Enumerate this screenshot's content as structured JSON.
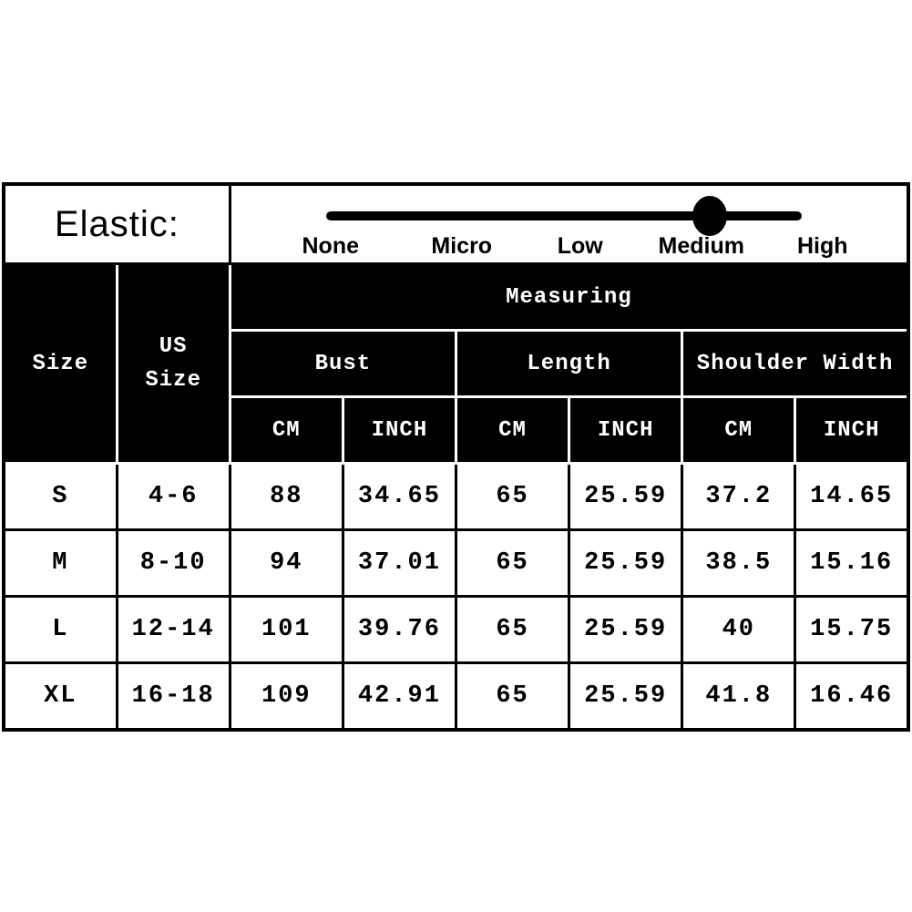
{
  "elastic": {
    "label": "Elastic:",
    "levels": [
      "None",
      "Micro",
      "Low",
      "Medium",
      "High"
    ],
    "selected": "Medium"
  },
  "header": {
    "size": "Size",
    "us_size": "US\nSize",
    "measuring": "Measuring",
    "groups": [
      "Bust",
      "Length",
      "Shoulder Width"
    ],
    "units": [
      "CM",
      "INCH",
      "CM",
      "INCH",
      "CM",
      "INCH"
    ]
  },
  "chart_data": {
    "type": "table",
    "title": "Garment size chart with elastic level indicator",
    "elastic_scale": {
      "options": [
        "None",
        "Micro",
        "Low",
        "Medium",
        "High"
      ],
      "selected": "Medium"
    },
    "columns": [
      "Size",
      "US Size",
      "Bust CM",
      "Bust INCH",
      "Length CM",
      "Length INCH",
      "Shoulder Width CM",
      "Shoulder Width INCH"
    ],
    "rows": [
      [
        "S",
        "4-6",
        "88",
        "34.65",
        "65",
        "25.59",
        "37.2",
        "14.65"
      ],
      [
        "M",
        "8-10",
        "94",
        "37.01",
        "65",
        "25.59",
        "38.5",
        "15.16"
      ],
      [
        "L",
        "12-14",
        "101",
        "39.76",
        "65",
        "25.59",
        "40",
        "15.75"
      ],
      [
        "XL",
        "16-18",
        "109",
        "42.91",
        "65",
        "25.59",
        "41.8",
        "16.46"
      ]
    ],
    "colors": {
      "header_bg": "#000000",
      "header_text": "#ffffff",
      "body_bg": "#ffffff",
      "body_text": "#000000",
      "slider": "#000000"
    }
  }
}
